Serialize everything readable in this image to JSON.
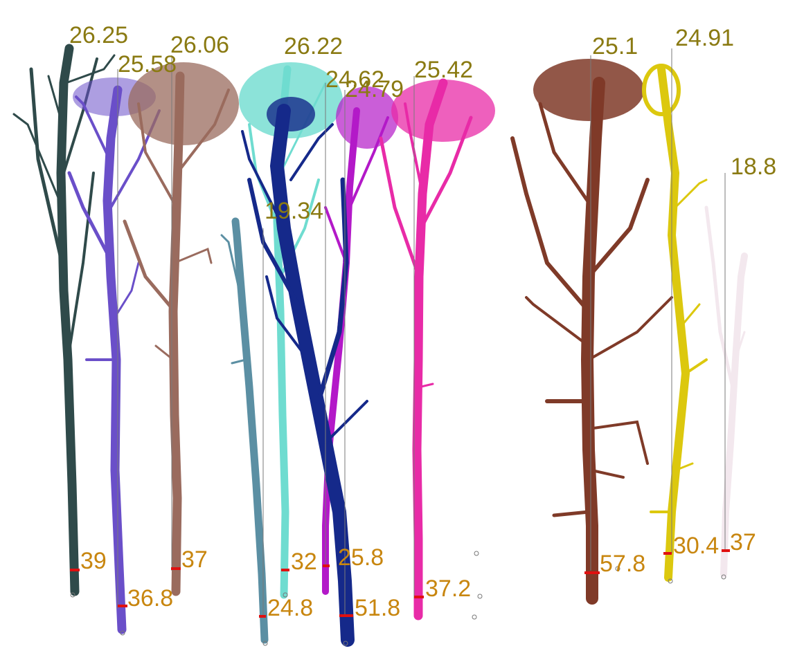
{
  "trees": [
    {
      "id": 1,
      "height": "26.25",
      "dbh": "39",
      "color": "#2f4a4a"
    },
    {
      "id": 2,
      "height": "25.58",
      "dbh": "36.8",
      "color": "#6a4fc9"
    },
    {
      "id": 3,
      "height": "26.06",
      "dbh": "37",
      "color": "#9a6b5e"
    },
    {
      "id": 4,
      "height": "19.34",
      "dbh": "24.8",
      "color": "#5b8fa3"
    },
    {
      "id": 5,
      "height": "26.22",
      "dbh": "32",
      "color": "#6fdcd0"
    },
    {
      "id": 6,
      "height": "24.62",
      "dbh": "25.8",
      "color": "#b319c8"
    },
    {
      "id": 7,
      "height": "24.79",
      "dbh": "51.8",
      "color": "#15298a"
    },
    {
      "id": 8,
      "height": "25.42",
      "dbh": "37.2",
      "color": "#e82ba7"
    },
    {
      "id": 9,
      "height": "25.1",
      "dbh": "57.8",
      "color": "#7f3a28"
    },
    {
      "id": 10,
      "height": "24.91",
      "dbh": "30.4",
      "color": "#dcc80e"
    },
    {
      "id": 11,
      "height": "18.8",
      "dbh": "37",
      "color": "#f3e8ee"
    }
  ],
  "label_colors": {
    "height": "#8a7a12",
    "dbh": "#c8860f",
    "dbh_marker": "#e01010"
  }
}
